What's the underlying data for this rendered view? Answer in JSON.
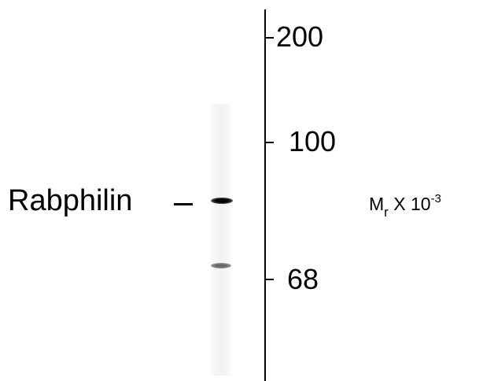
{
  "figure": {
    "protein_label": "Rabphilin",
    "protein_dash": "–",
    "markers": [
      "200",
      "100",
      "68"
    ],
    "axis_label": {
      "main": "M",
      "subscript": "r",
      "middle": " X 10",
      "superscript": "-3"
    }
  }
}
